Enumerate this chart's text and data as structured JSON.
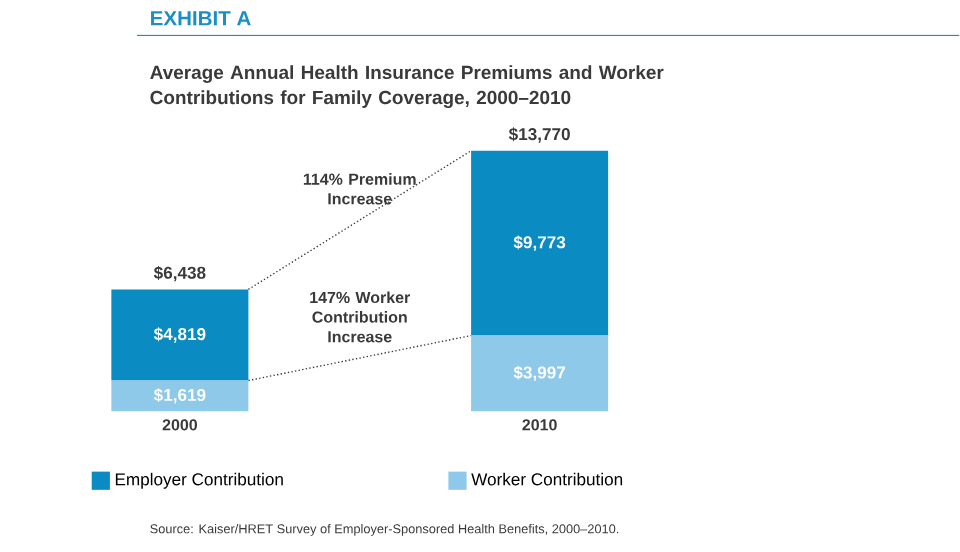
{
  "chart_data": {
    "type": "bar",
    "stacked": true,
    "subtitle": "EXHIBIT A",
    "title": "Average Annual Health Insurance Premiums and Worker Contributions for Family Coverage, 2000–2010",
    "categories": [
      "2000",
      "2010"
    ],
    "series": [
      {
        "name": "Worker Contribution",
        "color": "#8ec9ea",
        "values": [
          1619,
          3997
        ],
        "value_labels": [
          "$1,619",
          "$3,997"
        ]
      },
      {
        "name": "Employer Contribution",
        "color": "#0a8cc2",
        "values": [
          4819,
          9773
        ],
        "value_labels": [
          "$4,819",
          "$9,773"
        ]
      }
    ],
    "totals": [
      "$6,438",
      "$13,770"
    ],
    "legend": "bottom",
    "annotations": [
      "114% Premium Increase",
      "147% Worker Contribution Increase",
      "Source: Kaiser/HRET Survey of Employer-Sponsored Health Benefits, 2000–2010."
    ]
  }
}
